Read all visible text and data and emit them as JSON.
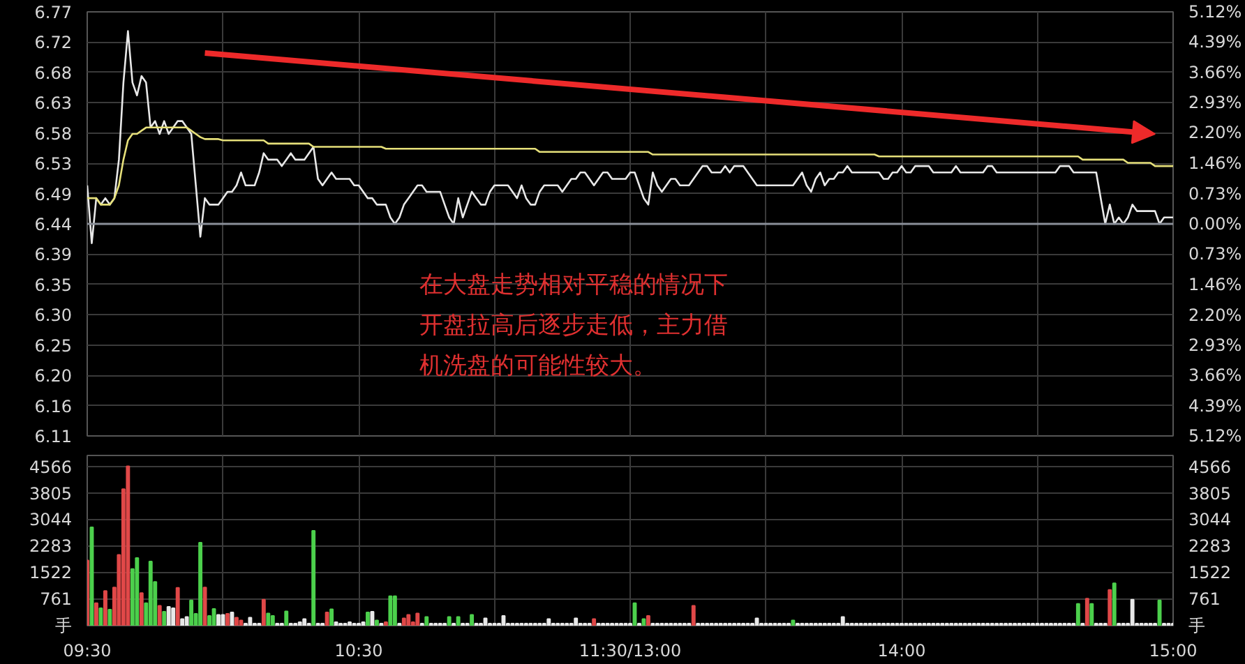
{
  "chart_data": [
    {
      "type": "line",
      "categories": [
        null,
        null,
        null,
        null,
        null,
        null,
        null,
        null,
        null,
        null,
        null,
        null,
        null,
        null,
        null,
        null,
        null,
        null,
        null,
        null,
        null,
        null,
        null,
        null,
        null,
        null,
        null,
        null,
        null,
        null,
        null,
        null,
        null,
        null,
        null,
        null,
        null,
        null,
        null,
        null,
        null,
        null,
        null,
        null,
        null,
        null,
        null,
        null,
        null,
        null,
        null,
        null,
        null,
        null,
        null,
        null,
        null,
        null,
        null,
        null,
        null,
        null,
        null,
        null,
        null,
        null,
        null,
        null,
        null,
        null,
        null,
        null,
        null,
        null,
        null,
        null,
        null,
        null,
        null,
        null,
        null,
        null,
        null,
        null,
        null,
        null,
        null,
        null,
        null,
        null,
        null,
        null,
        null,
        null,
        null,
        null,
        null,
        null,
        null,
        null,
        null,
        null,
        null,
        null,
        null,
        null,
        null,
        null,
        null,
        null,
        null,
        null,
        null,
        null,
        null,
        null,
        null,
        null,
        null,
        null,
        null,
        null,
        null,
        null,
        null,
        null,
        null,
        null,
        null,
        null,
        null,
        null,
        null,
        null,
        null,
        null,
        null,
        null,
        null,
        null,
        null,
        null,
        null,
        null,
        null,
        null,
        null,
        null,
        null,
        null,
        null,
        null,
        null,
        null,
        null,
        null,
        null,
        null,
        null,
        null,
        null,
        null,
        null,
        null,
        null,
        null,
        null,
        null,
        null,
        null,
        null,
        null,
        null,
        null,
        null,
        null,
        null,
        null,
        null,
        null,
        null,
        null,
        null,
        null,
        null,
        null,
        null,
        null,
        null,
        null,
        null,
        null,
        null,
        null,
        null,
        null,
        null,
        null,
        null,
        null,
        null,
        null,
        null,
        null,
        null,
        null,
        null,
        null,
        null,
        null,
        null,
        null,
        null,
        null,
        null,
        null,
        null,
        null,
        null,
        null,
        null,
        null,
        null,
        null,
        null,
        null,
        null,
        null,
        null,
        null,
        null,
        null,
        null,
        null,
        null,
        null,
        null,
        null,
        null,
        null,
        null
      ],
      "series": [
        {
          "color": "#e8e8e8",
          "values": [
            6.5,
            6.41,
            6.48,
            6.47,
            6.48,
            6.47,
            6.48,
            6.54,
            6.66,
            6.74,
            6.66,
            6.64,
            6.67,
            6.66,
            6.59,
            6.6,
            6.58,
            6.6,
            6.58,
            6.59,
            6.6,
            6.6,
            6.59,
            6.58,
            6.5,
            6.42,
            6.48,
            6.47,
            6.47,
            6.47,
            6.48,
            6.49,
            6.49,
            6.5,
            6.52,
            6.5,
            6.5,
            6.5,
            6.52,
            6.55,
            6.54,
            6.54,
            6.54,
            6.53,
            6.54,
            6.55,
            6.54,
            6.54,
            6.54,
            6.55,
            6.56,
            6.51,
            6.5,
            6.51,
            6.52,
            6.51,
            6.51,
            6.51,
            6.51,
            6.5,
            6.5,
            6.49,
            6.48,
            6.48,
            6.47,
            6.47,
            6.47,
            6.45,
            6.44,
            6.45,
            6.47,
            6.48,
            6.49,
            6.5,
            6.5,
            6.49,
            6.49,
            6.49,
            6.49,
            6.47,
            6.45,
            6.44,
            6.48,
            6.45,
            6.47,
            6.49,
            6.48,
            6.47,
            6.47,
            6.49,
            6.5,
            6.5,
            6.5,
            6.5,
            6.49,
            6.48,
            6.5,
            6.48,
            6.47,
            6.47,
            6.49,
            6.5,
            6.5,
            6.5,
            6.5,
            6.49,
            6.5,
            6.51,
            6.51,
            6.52,
            6.52,
            6.51,
            6.5,
            6.51,
            6.52,
            6.52,
            6.51,
            6.51,
            6.51,
            6.51,
            6.52,
            6.52,
            6.5,
            6.48,
            6.47,
            6.52,
            6.5,
            6.49,
            6.5,
            6.51,
            6.51,
            6.5,
            6.5,
            6.5,
            6.51,
            6.52,
            6.53,
            6.53,
            6.52,
            6.52,
            6.52,
            6.53,
            6.52,
            6.53,
            6.53,
            6.53,
            6.52,
            6.51,
            6.5,
            6.5,
            6.5,
            6.5,
            6.5,
            6.5,
            6.5,
            6.5,
            6.5,
            6.51,
            6.52,
            6.5,
            6.49,
            6.51,
            6.52,
            6.5,
            6.51,
            6.51,
            6.52,
            6.52,
            6.53,
            6.52,
            6.52,
            6.52,
            6.52,
            6.52,
            6.52,
            6.52,
            6.51,
            6.51,
            6.52,
            6.52,
            6.53,
            6.52,
            6.52,
            6.53,
            6.53,
            6.53,
            6.53,
            6.52,
            6.52,
            6.52,
            6.52,
            6.52,
            6.53,
            6.52,
            6.52,
            6.52,
            6.52,
            6.52,
            6.52,
            6.53,
            6.53,
            6.52,
            6.52,
            6.52,
            6.52,
            6.52,
            6.52,
            6.52,
            6.52,
            6.52,
            6.52,
            6.52,
            6.52,
            6.52,
            6.52,
            6.53,
            6.53,
            6.53,
            6.52,
            6.52,
            6.52,
            6.52,
            6.52,
            6.52,
            6.48,
            6.44,
            6.47,
            6.44,
            6.45,
            6.44,
            6.45,
            6.47,
            6.46,
            6.46,
            6.46,
            6.46,
            6.46,
            6.44,
            6.45,
            6.45,
            6.45
          ]
        },
        {
          "color": "#e6e07a",
          "values": [
            6.48,
            6.48,
            6.48,
            6.47,
            6.47,
            6.47,
            6.48,
            6.5,
            6.54,
            6.57,
            6.58,
            6.58,
            6.585,
            6.59,
            6.59,
            6.59,
            6.59,
            6.59,
            6.59,
            6.59,
            6.59,
            6.59,
            6.59,
            6.585,
            6.58,
            6.575,
            6.572,
            6.572,
            6.572,
            6.572,
            6.57,
            6.57,
            6.57,
            6.57,
            6.57,
            6.57,
            6.57,
            6.57,
            6.57,
            6.57,
            6.565,
            6.565,
            6.565,
            6.565,
            6.565,
            6.565,
            6.565,
            6.565,
            6.565,
            6.565,
            6.56,
            6.56,
            6.56,
            6.56,
            6.56,
            6.56,
            6.56,
            6.56,
            6.56,
            6.56,
            6.56,
            6.56,
            6.56,
            6.56,
            6.56,
            6.56,
            6.557,
            6.557,
            6.557,
            6.557,
            6.557,
            6.557,
            6.557,
            6.557,
            6.557,
            6.557,
            6.557,
            6.557,
            6.557,
            6.557,
            6.557,
            6.557,
            6.557,
            6.557,
            6.557,
            6.557,
            6.557,
            6.557,
            6.557,
            6.557,
            6.557,
            6.557,
            6.557,
            6.557,
            6.557,
            6.557,
            6.557,
            6.557,
            6.557,
            6.557,
            6.552,
            6.552,
            6.552,
            6.552,
            6.552,
            6.552,
            6.552,
            6.552,
            6.552,
            6.552,
            6.552,
            6.552,
            6.552,
            6.552,
            6.552,
            6.552,
            6.552,
            6.552,
            6.552,
            6.552,
            6.552,
            6.552,
            6.552,
            6.552,
            6.552,
            6.548,
            6.548,
            6.548,
            6.548,
            6.548,
            6.548,
            6.548,
            6.548,
            6.548,
            6.548,
            6.548,
            6.548,
            6.548,
            6.548,
            6.548,
            6.548,
            6.548,
            6.548,
            6.548,
            6.548,
            6.548,
            6.548,
            6.548,
            6.548,
            6.548,
            6.548,
            6.548,
            6.548,
            6.548,
            6.548,
            6.548,
            6.548,
            6.548,
            6.548,
            6.548,
            6.548,
            6.548,
            6.548,
            6.548,
            6.548,
            6.548,
            6.548,
            6.548,
            6.548,
            6.548,
            6.548,
            6.548,
            6.548,
            6.548,
            6.548,
            6.545,
            6.545,
            6.545,
            6.545,
            6.545,
            6.545,
            6.545,
            6.545,
            6.545,
            6.545,
            6.545,
            6.545,
            6.545,
            6.545,
            6.545,
            6.545,
            6.545,
            6.545,
            6.545,
            6.545,
            6.545,
            6.545,
            6.545,
            6.545,
            6.545,
            6.545,
            6.545,
            6.545,
            6.545,
            6.545,
            6.545,
            6.545,
            6.545,
            6.545,
            6.545,
            6.545,
            6.545,
            6.545,
            6.545,
            6.545,
            6.545,
            6.545,
            6.545,
            6.545,
            6.545,
            6.54,
            6.54,
            6.54,
            6.54,
            6.54,
            6.54,
            6.54,
            6.54,
            6.54,
            6.54,
            6.535,
            6.535,
            6.535,
            6.535,
            6.535,
            6.535,
            6.53,
            6.53,
            6.53,
            6.53,
            6.53
          ]
        }
      ],
      "ylim": [
        6.11,
        6.77
      ],
      "yticks": [
        6.11,
        {
          "value": 6.1571,
          "label": "6.16"
        },
        {
          "value": 6.2043,
          "label": "6.20"
        },
        {
          "value": 6.2514,
          "label": "6.25"
        },
        {
          "value": 6.2986,
          "label": "6.30"
        },
        {
          "value": 6.3457,
          "label": "6.35"
        },
        {
          "value": 6.3929,
          "label": "6.39"
        },
        6.44,
        {
          "value": 6.4871,
          "label": "6.49"
        },
        {
          "value": 6.5343,
          "label": "6.53"
        },
        {
          "value": 6.5814,
          "label": "6.58"
        },
        {
          "value": 6.6286,
          "label": "6.63"
        },
        {
          "value": 6.6757,
          "label": "6.68"
        },
        {
          "value": 6.7229,
          "label": "6.72"
        },
        6.77
      ],
      "y2lim": [
        -5.12,
        5.12
      ],
      "y2ticks": [
        {
          "value": -5.12,
          "label": "5.12%"
        },
        {
          "value": -4.3886,
          "label": "4.39%"
        },
        {
          "value": -3.6571,
          "label": "3.66%"
        },
        {
          "value": -2.9257,
          "label": "2.93%"
        },
        {
          "value": -2.2,
          "label": "2.20%"
        },
        {
          "value": -1.4629,
          "label": "1.46%"
        },
        {
          "value": -0.7314,
          "label": "0.73%"
        },
        {
          "value": 0,
          "label": "0.00%"
        },
        {
          "value": 0.7314,
          "label": "0.73%"
        },
        {
          "value": 1.4629,
          "label": "1.46%"
        },
        {
          "value": 2.2,
          "label": "2.20%"
        },
        {
          "value": 2.9257,
          "label": "2.93%"
        },
        {
          "value": 3.6571,
          "label": "3.66%"
        },
        {
          "value": 4.3886,
          "label": "4.39%"
        },
        {
          "value": 5.12,
          "label": "5.12%"
        }
      ],
      "tick_labels": "y",
      "grid": true,
      "line_style": "solid",
      "ref_lines": [
        {
          "axis": "y",
          "value": 6.44,
          "color": "#8a8f99"
        }
      ],
      "annotations": [
        "在大盘走势相对平稳的情况下开盘拉高后逐步走低，主力借机洗盘的可能性较大。"
      ]
    },
    {
      "type": "bar",
      "categories": [
        "09:30",
        null,
        null,
        null,
        null,
        null,
        null,
        null,
        null,
        null,
        null,
        null,
        null,
        null,
        null,
        null,
        null,
        null,
        null,
        null,
        null,
        null,
        null,
        null,
        null,
        null,
        null,
        null,
        null,
        null,
        null,
        null,
        null,
        null,
        null,
        null,
        null,
        null,
        null,
        null,
        null,
        null,
        null,
        null,
        null,
        null,
        null,
        null,
        null,
        null,
        null,
        null,
        null,
        null,
        null,
        null,
        null,
        null,
        null,
        null,
        "10:30",
        null,
        null,
        null,
        null,
        null,
        null,
        null,
        null,
        null,
        null,
        null,
        null,
        null,
        null,
        null,
        null,
        null,
        null,
        null,
        null,
        null,
        null,
        null,
        null,
        null,
        null,
        null,
        null,
        null,
        null,
        null,
        null,
        null,
        null,
        null,
        null,
        null,
        null,
        null,
        null,
        null,
        null,
        null,
        null,
        null,
        null,
        null,
        null,
        null,
        null,
        null,
        null,
        null,
        null,
        null,
        null,
        null,
        null,
        null,
        "11:30/13:00",
        null,
        null,
        null,
        null,
        null,
        null,
        null,
        null,
        null,
        null,
        null,
        null,
        null,
        null,
        null,
        null,
        null,
        null,
        null,
        null,
        null,
        null,
        null,
        null,
        null,
        null,
        null,
        null,
        null,
        null,
        null,
        null,
        null,
        null,
        null,
        null,
        null,
        null,
        null,
        null,
        null,
        null,
        null,
        null,
        null,
        null,
        null,
        null,
        null,
        null,
        null,
        null,
        null,
        null,
        null,
        null,
        null,
        null,
        null,
        "14:00",
        null,
        null,
        null,
        null,
        null,
        null,
        null,
        null,
        null,
        null,
        null,
        null,
        null,
        null,
        null,
        null,
        null,
        null,
        null,
        null,
        null,
        null,
        null,
        null,
        null,
        null,
        null,
        null,
        null,
        null,
        null,
        null,
        null,
        null,
        null,
        null,
        null,
        null,
        null,
        null,
        null,
        null,
        null,
        null,
        null,
        null,
        null,
        null,
        null,
        null,
        null,
        null,
        null,
        null,
        null,
        null,
        null,
        null,
        null,
        "15:00"
      ],
      "series": [
        {
          "values": [
            1880,
            2830,
            650,
            500,
            1000,
            460,
            1100,
            2040,
            3930,
            4590,
            1630,
            1950,
            940,
            650,
            1850,
            1260,
            570,
            400,
            540,
            500,
            1090,
            190,
            250,
            730,
            340,
            2390,
            1100,
            280,
            480,
            310,
            310,
            340,
            380,
            230,
            150,
            60,
            230,
            60,
            60,
            750,
            350,
            280,
            60,
            60,
            410,
            60,
            60,
            100,
            190,
            60,
            2730,
            60,
            60,
            380,
            470,
            100,
            60,
            60,
            100,
            60,
            60,
            100,
            380,
            400,
            150,
            60,
            100,
            850,
            850,
            60,
            210,
            310,
            100,
            350,
            60,
            250,
            60,
            60,
            60,
            60,
            250,
            60,
            250,
            60,
            60,
            310,
            60,
            60,
            210,
            60,
            60,
            60,
            280,
            60,
            60,
            60,
            60,
            60,
            60,
            60,
            60,
            60,
            190,
            60,
            60,
            60,
            60,
            60,
            210,
            60,
            60,
            60,
            190,
            60,
            60,
            60,
            60,
            60,
            60,
            60,
            60,
            650,
            60,
            190,
            280,
            60,
            60,
            60,
            60,
            60,
            60,
            60,
            60,
            60,
            570,
            60,
            60,
            60,
            60,
            60,
            60,
            60,
            60,
            60,
            60,
            60,
            60,
            60,
            210,
            60,
            60,
            60,
            60,
            60,
            60,
            60,
            150,
            60,
            60,
            60,
            60,
            60,
            60,
            60,
            60,
            60,
            60,
            250,
            60,
            60,
            60,
            60,
            60,
            60,
            60,
            60,
            60,
            60,
            60,
            60,
            60,
            60,
            60,
            60,
            60,
            60,
            60,
            60,
            60,
            60,
            60,
            60,
            60,
            60,
            60,
            60,
            60,
            60,
            60,
            60,
            60,
            60,
            60,
            60,
            60,
            60,
            60,
            60,
            60,
            60,
            60,
            60,
            60,
            60,
            60,
            60,
            60,
            60,
            60,
            630,
            60,
            780,
            630,
            60,
            60,
            60,
            1030,
            1220,
            60,
            60,
            60,
            750,
            60,
            60,
            60,
            60,
            60,
            730,
            60,
            60,
            60
          ],
          "colors": [
            "#e04848",
            "#4cd04c",
            "#e04848",
            "#4cd04c",
            "#e04848",
            "#4cd04c",
            "#e04848",
            "#e04848",
            "#e04848",
            "#e04848",
            "#4cd04c",
            "#4cd04c",
            "#e04848",
            "#4cd04c",
            "#4cd04c",
            "#4cd04c",
            "#e04848",
            "#4cd04c",
            "#e8e8e8",
            "#e8e8e8",
            "#e04848",
            "#e8e8e8",
            "#e8e8e8",
            "#4cd04c",
            "#4cd04c",
            "#4cd04c",
            "#e04848",
            "#4cd04c",
            "#4cd04c",
            "#e8e8e8",
            "#e8e8e8",
            "#e04848",
            "#e8e8e8",
            "#e04848",
            "#e04848",
            "#e8e8e8",
            "#e8e8e8",
            "#e8e8e8",
            "#e8e8e8",
            "#e04848",
            "#4cd04c",
            "#4cd04c",
            "#e8e8e8",
            "#e8e8e8",
            "#4cd04c",
            "#e8e8e8",
            "#e8e8e8",
            "#e8e8e8",
            "#e8e8e8",
            "#e8e8e8",
            "#4cd04c",
            "#e8e8e8",
            "#e8e8e8",
            "#e04848",
            "#4cd04c",
            "#e8e8e8",
            "#e8e8e8",
            "#e8e8e8",
            "#e8e8e8",
            "#e8e8e8",
            "#e8e8e8",
            "#e8e8e8",
            "#4cd04c",
            "#e8e8e8",
            "#4cd04c",
            "#e8e8e8",
            "#e04848",
            "#4cd04c",
            "#4cd04c",
            "#e8e8e8",
            "#e04848",
            "#e04848",
            "#e04848",
            "#e04848",
            "#e8e8e8",
            "#4cd04c",
            "#e8e8e8",
            "#e8e8e8",
            "#e8e8e8",
            "#e8e8e8",
            "#4cd04c",
            "#e8e8e8",
            "#4cd04c",
            "#e8e8e8",
            "#e8e8e8",
            "#4cd04c",
            "#e8e8e8",
            "#e8e8e8",
            "#e8e8e8",
            "#e8e8e8",
            "#e8e8e8",
            "#e8e8e8",
            "#e8e8e8",
            "#e8e8e8",
            "#e8e8e8",
            "#e8e8e8",
            "#e8e8e8",
            "#e8e8e8",
            "#e8e8e8",
            "#e8e8e8",
            "#e8e8e8",
            "#e8e8e8",
            "#e8e8e8",
            "#e8e8e8",
            "#e8e8e8",
            "#e8e8e8",
            "#e8e8e8",
            "#e8e8e8",
            "#e8e8e8",
            "#e8e8e8",
            "#e8e8e8",
            "#e8e8e8",
            "#e04848",
            "#e8e8e8",
            "#e8e8e8",
            "#e8e8e8",
            "#e8e8e8",
            "#e8e8e8",
            "#e8e8e8",
            "#e8e8e8",
            "#e8e8e8",
            "#4cd04c",
            "#e8e8e8",
            "#4cd04c",
            "#e04848",
            "#e8e8e8",
            "#e8e8e8",
            "#e8e8e8",
            "#e8e8e8",
            "#e8e8e8",
            "#e8e8e8",
            "#e8e8e8",
            "#e8e8e8",
            "#e8e8e8",
            "#e04848",
            "#e8e8e8",
            "#e8e8e8",
            "#e8e8e8",
            "#e8e8e8",
            "#e8e8e8",
            "#e8e8e8",
            "#e8e8e8",
            "#e8e8e8",
            "#e8e8e8",
            "#e8e8e8",
            "#e8e8e8",
            "#e8e8e8",
            "#e8e8e8",
            "#e8e8e8",
            "#e8e8e8",
            "#e8e8e8",
            "#e8e8e8",
            "#e8e8e8",
            "#e8e8e8",
            "#e8e8e8",
            "#e8e8e8",
            "#4cd04c",
            "#e8e8e8",
            "#e8e8e8",
            "#e8e8e8",
            "#e8e8e8",
            "#e8e8e8",
            "#e8e8e8",
            "#e8e8e8",
            "#e8e8e8",
            "#e8e8e8",
            "#e8e8e8",
            "#e8e8e8",
            "#e8e8e8",
            "#e8e8e8",
            "#e8e8e8",
            "#e8e8e8",
            "#e8e8e8",
            "#e8e8e8",
            "#e8e8e8",
            "#e8e8e8",
            "#e8e8e8",
            "#e8e8e8",
            "#e8e8e8",
            "#e8e8e8",
            "#e8e8e8",
            "#e8e8e8",
            "#e8e8e8",
            "#e8e8e8",
            "#e8e8e8",
            "#e8e8e8",
            "#e8e8e8",
            "#e8e8e8",
            "#e8e8e8",
            "#e8e8e8",
            "#e8e8e8",
            "#e8e8e8",
            "#e8e8e8",
            "#e8e8e8",
            "#e8e8e8",
            "#e8e8e8",
            "#e8e8e8",
            "#e8e8e8",
            "#e8e8e8",
            "#e8e8e8",
            "#e8e8e8",
            "#e8e8e8",
            "#e8e8e8",
            "#e8e8e8",
            "#e8e8e8",
            "#e8e8e8",
            "#e8e8e8",
            "#e8e8e8",
            "#e8e8e8",
            "#e8e8e8",
            "#e8e8e8",
            "#e8e8e8",
            "#e8e8e8",
            "#e8e8e8",
            "#e8e8e8",
            "#e8e8e8",
            "#e8e8e8",
            "#e8e8e8",
            "#e8e8e8",
            "#4cd04c",
            "#e8e8e8",
            "#e04848",
            "#4cd04c",
            "#e8e8e8",
            "#e8e8e8",
            "#e8e8e8",
            "#e04848",
            "#4cd04c",
            "#e8e8e8",
            "#e8e8e8",
            "#e8e8e8",
            "#e8e8e8",
            "#e8e8e8",
            "#e8e8e8",
            "#e8e8e8",
            "#e8e8e8",
            "#e8e8e8",
            "#4cd04c",
            "#e8e8e8",
            "#e8e8e8",
            "#e8e8e8"
          ]
        }
      ],
      "ylim": [
        0,
        4900
      ],
      "yticks": [
        {
          "value": 0,
          "label": "手"
        },
        761,
        1522,
        2283,
        3044,
        3805,
        4566
      ],
      "y2lim": [
        0,
        4900
      ],
      "y2ticks": [
        {
          "value": 0,
          "label": "手"
        },
        761,
        1522,
        2283,
        3044,
        3805,
        4566
      ],
      "grid": true
    }
  ]
}
